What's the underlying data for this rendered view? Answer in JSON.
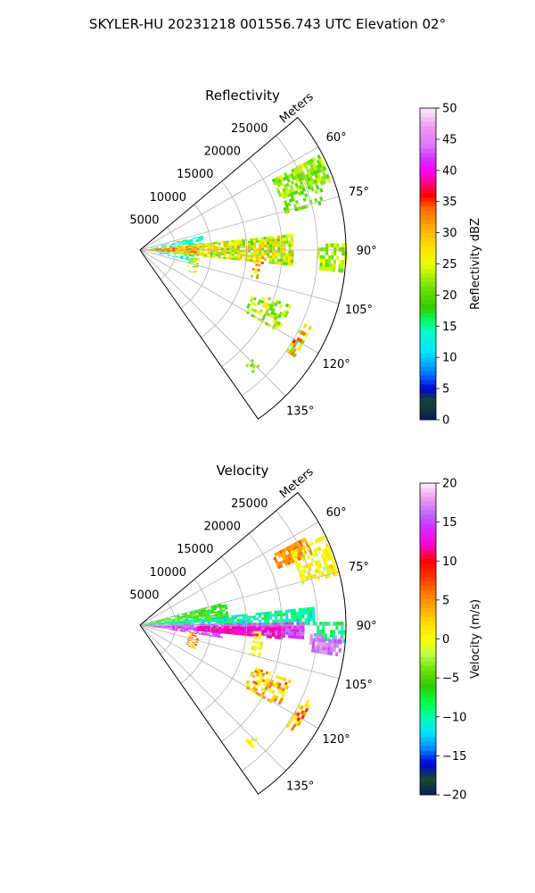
{
  "figure": {
    "suptitle": "SKYLER-HU  20231218  001556.743 UTC Elevation 02°"
  },
  "chart_data": [
    {
      "type": "heatmap",
      "projection": "polar-sector",
      "title": "Reflectivity",
      "range_axis_label": "Meters",
      "range_ticks": [
        "5000",
        "10000",
        "15000",
        "20000",
        "25000"
      ],
      "range_tick_values": [
        5000,
        10000,
        15000,
        20000,
        25000
      ],
      "range_max": 29000,
      "azimuth_range_deg": [
        50,
        145
      ],
      "azimuth_ticks": [
        "60°",
        "75°",
        "90°",
        "105°",
        "120°",
        "135°"
      ],
      "azimuth_tick_values": [
        60,
        75,
        90,
        105,
        120,
        135
      ],
      "grid": true,
      "colorbar": {
        "label": "Reflectivity dBZ",
        "range": [
          0,
          50
        ],
        "ticks": [
          "0",
          "5",
          "10",
          "15",
          "20",
          "25",
          "30",
          "35",
          "40",
          "45",
          "50"
        ],
        "tick_values": [
          0,
          5,
          10,
          15,
          20,
          25,
          30,
          35,
          40,
          45,
          50
        ],
        "stops": [
          [
            0,
            "#0a1a5a"
          ],
          [
            3,
            "#154a2a"
          ],
          [
            5,
            "#0000cc"
          ],
          [
            7,
            "#0066ff"
          ],
          [
            9,
            "#00aaff"
          ],
          [
            11,
            "#00e5ff"
          ],
          [
            14,
            "#00ffcc"
          ],
          [
            16,
            "#00ff66"
          ],
          [
            18,
            "#33cc00"
          ],
          [
            21,
            "#66e000"
          ],
          [
            23,
            "#aaee00"
          ],
          [
            25,
            "#eeff00"
          ],
          [
            28,
            "#ffdd00"
          ],
          [
            31,
            "#ffaa00"
          ],
          [
            34,
            "#ff6600"
          ],
          [
            36,
            "#ff0000"
          ],
          [
            38,
            "#ff0088"
          ],
          [
            40,
            "#ff00ff"
          ],
          [
            42,
            "#cc33ff"
          ],
          [
            44,
            "#dd77ff"
          ],
          [
            47,
            "#ee99ee"
          ],
          [
            50,
            "#ffeeff"
          ]
        ]
      },
      "echo_features": [
        {
          "az": [
            84,
            96
          ],
          "range": [
            0,
            21500
          ],
          "value": [
            19,
            31
          ],
          "density": 0.9
        },
        {
          "az": [
            86,
            93
          ],
          "range": [
            0,
            8000
          ],
          "value": [
            26,
            37
          ],
          "density": 0.9
        },
        {
          "az": [
            77,
            84
          ],
          "range": [
            1500,
            9000
          ],
          "value": [
            11,
            17
          ],
          "density": 0.55
        },
        {
          "az": [
            96,
            102
          ],
          "range": [
            2000,
            8000
          ],
          "value": [
            9,
            15
          ],
          "density": 0.5
        },
        {
          "az": [
            62,
            70
          ],
          "range": [
            21000,
            28500
          ],
          "value": [
            19,
            25
          ],
          "density": 0.75
        },
        {
          "az": [
            70,
            76
          ],
          "range": [
            21000,
            27000
          ],
          "value": [
            18,
            23
          ],
          "density": 0.45
        },
        {
          "az": [
            88,
            96
          ],
          "range": [
            25000,
            29000
          ],
          "value": [
            20,
            26
          ],
          "density": 0.75
        },
        {
          "az": [
            98,
            113
          ],
          "range": [
            7000,
            8200
          ],
          "value": [
            20,
            30
          ],
          "density": 0.55
        },
        {
          "az": [
            110,
            120
          ],
          "range": [
            17000,
            22500
          ],
          "value": [
            19,
            27
          ],
          "density": 0.5
        },
        {
          "az": [
            114,
            124
          ],
          "range": [
            25000,
            26500
          ],
          "value": [
            20,
            36
          ],
          "density": 0.55
        },
        {
          "az": [
            93,
            105
          ],
          "range": [
            16000,
            17500
          ],
          "value": [
            20,
            35
          ],
          "density": 0.5
        },
        {
          "az": [
            134,
            137
          ],
          "range": [
            22000,
            23500
          ],
          "value": [
            20,
            24
          ],
          "density": 0.5
        }
      ]
    },
    {
      "type": "heatmap",
      "projection": "polar-sector",
      "title": "Velocity",
      "range_axis_label": "Meters",
      "range_ticks": [
        "5000",
        "10000",
        "15000",
        "20000",
        "25000"
      ],
      "range_tick_values": [
        5000,
        10000,
        15000,
        20000,
        25000
      ],
      "range_max": 29000,
      "azimuth_range_deg": [
        50,
        145
      ],
      "azimuth_ticks": [
        "60°",
        "75°",
        "90°",
        "105°",
        "120°",
        "135°"
      ],
      "azimuth_tick_values": [
        60,
        75,
        90,
        105,
        120,
        135
      ],
      "grid": true,
      "colorbar": {
        "label": "Velocity (m/s)",
        "range": [
          -20,
          20
        ],
        "ticks": [
          "−20",
          "−15",
          "−10",
          "−5",
          "0",
          "5",
          "10",
          "15",
          "20"
        ],
        "tick_values": [
          -20,
          -15,
          -10,
          -5,
          0,
          5,
          10,
          15,
          20
        ],
        "stops": [
          [
            -20,
            "#0a1a5a"
          ],
          [
            -18,
            "#154a2a"
          ],
          [
            -16,
            "#0000dd"
          ],
          [
            -14,
            "#0088ff"
          ],
          [
            -12,
            "#00e5ff"
          ],
          [
            -10,
            "#00ffaa"
          ],
          [
            -8,
            "#00ff44"
          ],
          [
            -6,
            "#33cc00"
          ],
          [
            -4,
            "#66e000"
          ],
          [
            -2,
            "#bbff44"
          ],
          [
            0,
            "#ffff00"
          ],
          [
            2,
            "#ffdd00"
          ],
          [
            4,
            "#ffaa00"
          ],
          [
            6,
            "#ff7700"
          ],
          [
            8,
            "#ff3300"
          ],
          [
            10,
            "#ff0000"
          ],
          [
            12,
            "#ff00cc"
          ],
          [
            14,
            "#dd22ff"
          ],
          [
            16,
            "#bb66ff"
          ],
          [
            18,
            "#ee99ee"
          ],
          [
            20,
            "#ffeeff"
          ]
        ]
      },
      "echo_features": [
        {
          "az": [
            75,
            86
          ],
          "range": [
            0,
            12500
          ],
          "value": [
            -9,
            -3
          ],
          "density": 0.85
        },
        {
          "az": [
            84,
            89
          ],
          "range": [
            0,
            24500
          ],
          "value": [
            -13,
            -7
          ],
          "density": 0.8
        },
        {
          "az": [
            89,
            94
          ],
          "range": [
            0,
            23000
          ],
          "value": [
            13,
            17
          ],
          "density": 0.9
        },
        {
          "az": [
            93,
            99
          ],
          "range": [
            0,
            11500
          ],
          "value": [
            13,
            17
          ],
          "density": 0.75
        },
        {
          "az": [
            91,
            95
          ],
          "range": [
            8000,
            20000
          ],
          "value": [
            11,
            13
          ],
          "density": 0.85
        },
        {
          "az": [
            89,
            95
          ],
          "range": [
            24500,
            29000
          ],
          "value": [
            -12,
            -7
          ],
          "density": 0.6
        },
        {
          "az": [
            93,
            99
          ],
          "range": [
            24000,
            28500
          ],
          "value": [
            15,
            18
          ],
          "density": 0.7
        },
        {
          "az": [
            62,
            68
          ],
          "range": [
            21000,
            26000
          ],
          "value": [
            3,
            7
          ],
          "density": 0.85
        },
        {
          "az": [
            64,
            75
          ],
          "range": [
            23500,
            28500
          ],
          "value": [
            -2,
            3
          ],
          "density": 0.6
        },
        {
          "az": [
            98,
            113
          ],
          "range": [
            7000,
            8200
          ],
          "value": [
            -1,
            9
          ],
          "density": 0.55
        },
        {
          "az": [
            110,
            120
          ],
          "range": [
            17000,
            22500
          ],
          "value": [
            -2,
            7
          ],
          "density": 0.5
        },
        {
          "az": [
            114,
            124
          ],
          "range": [
            25000,
            26500
          ],
          "value": [
            -1,
            10
          ],
          "density": 0.55
        },
        {
          "az": [
            93,
            105
          ],
          "range": [
            16000,
            17500
          ],
          "value": [
            -2,
            2
          ],
          "density": 0.5
        },
        {
          "az": [
            134,
            137
          ],
          "range": [
            22000,
            23500
          ],
          "value": [
            -1,
            2
          ],
          "density": 0.5
        }
      ]
    }
  ]
}
